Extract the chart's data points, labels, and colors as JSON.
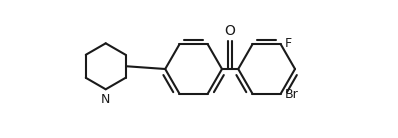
{
  "background_color": "#ffffff",
  "line_color": "#1a1a1a",
  "line_width": 1.5,
  "font_size": 9,
  "label_F": "F",
  "label_Br": "Br",
  "label_O": "O",
  "label_N": "N",
  "xlim": [
    0,
    10
  ],
  "ylim": [
    2.5,
    7.5
  ]
}
